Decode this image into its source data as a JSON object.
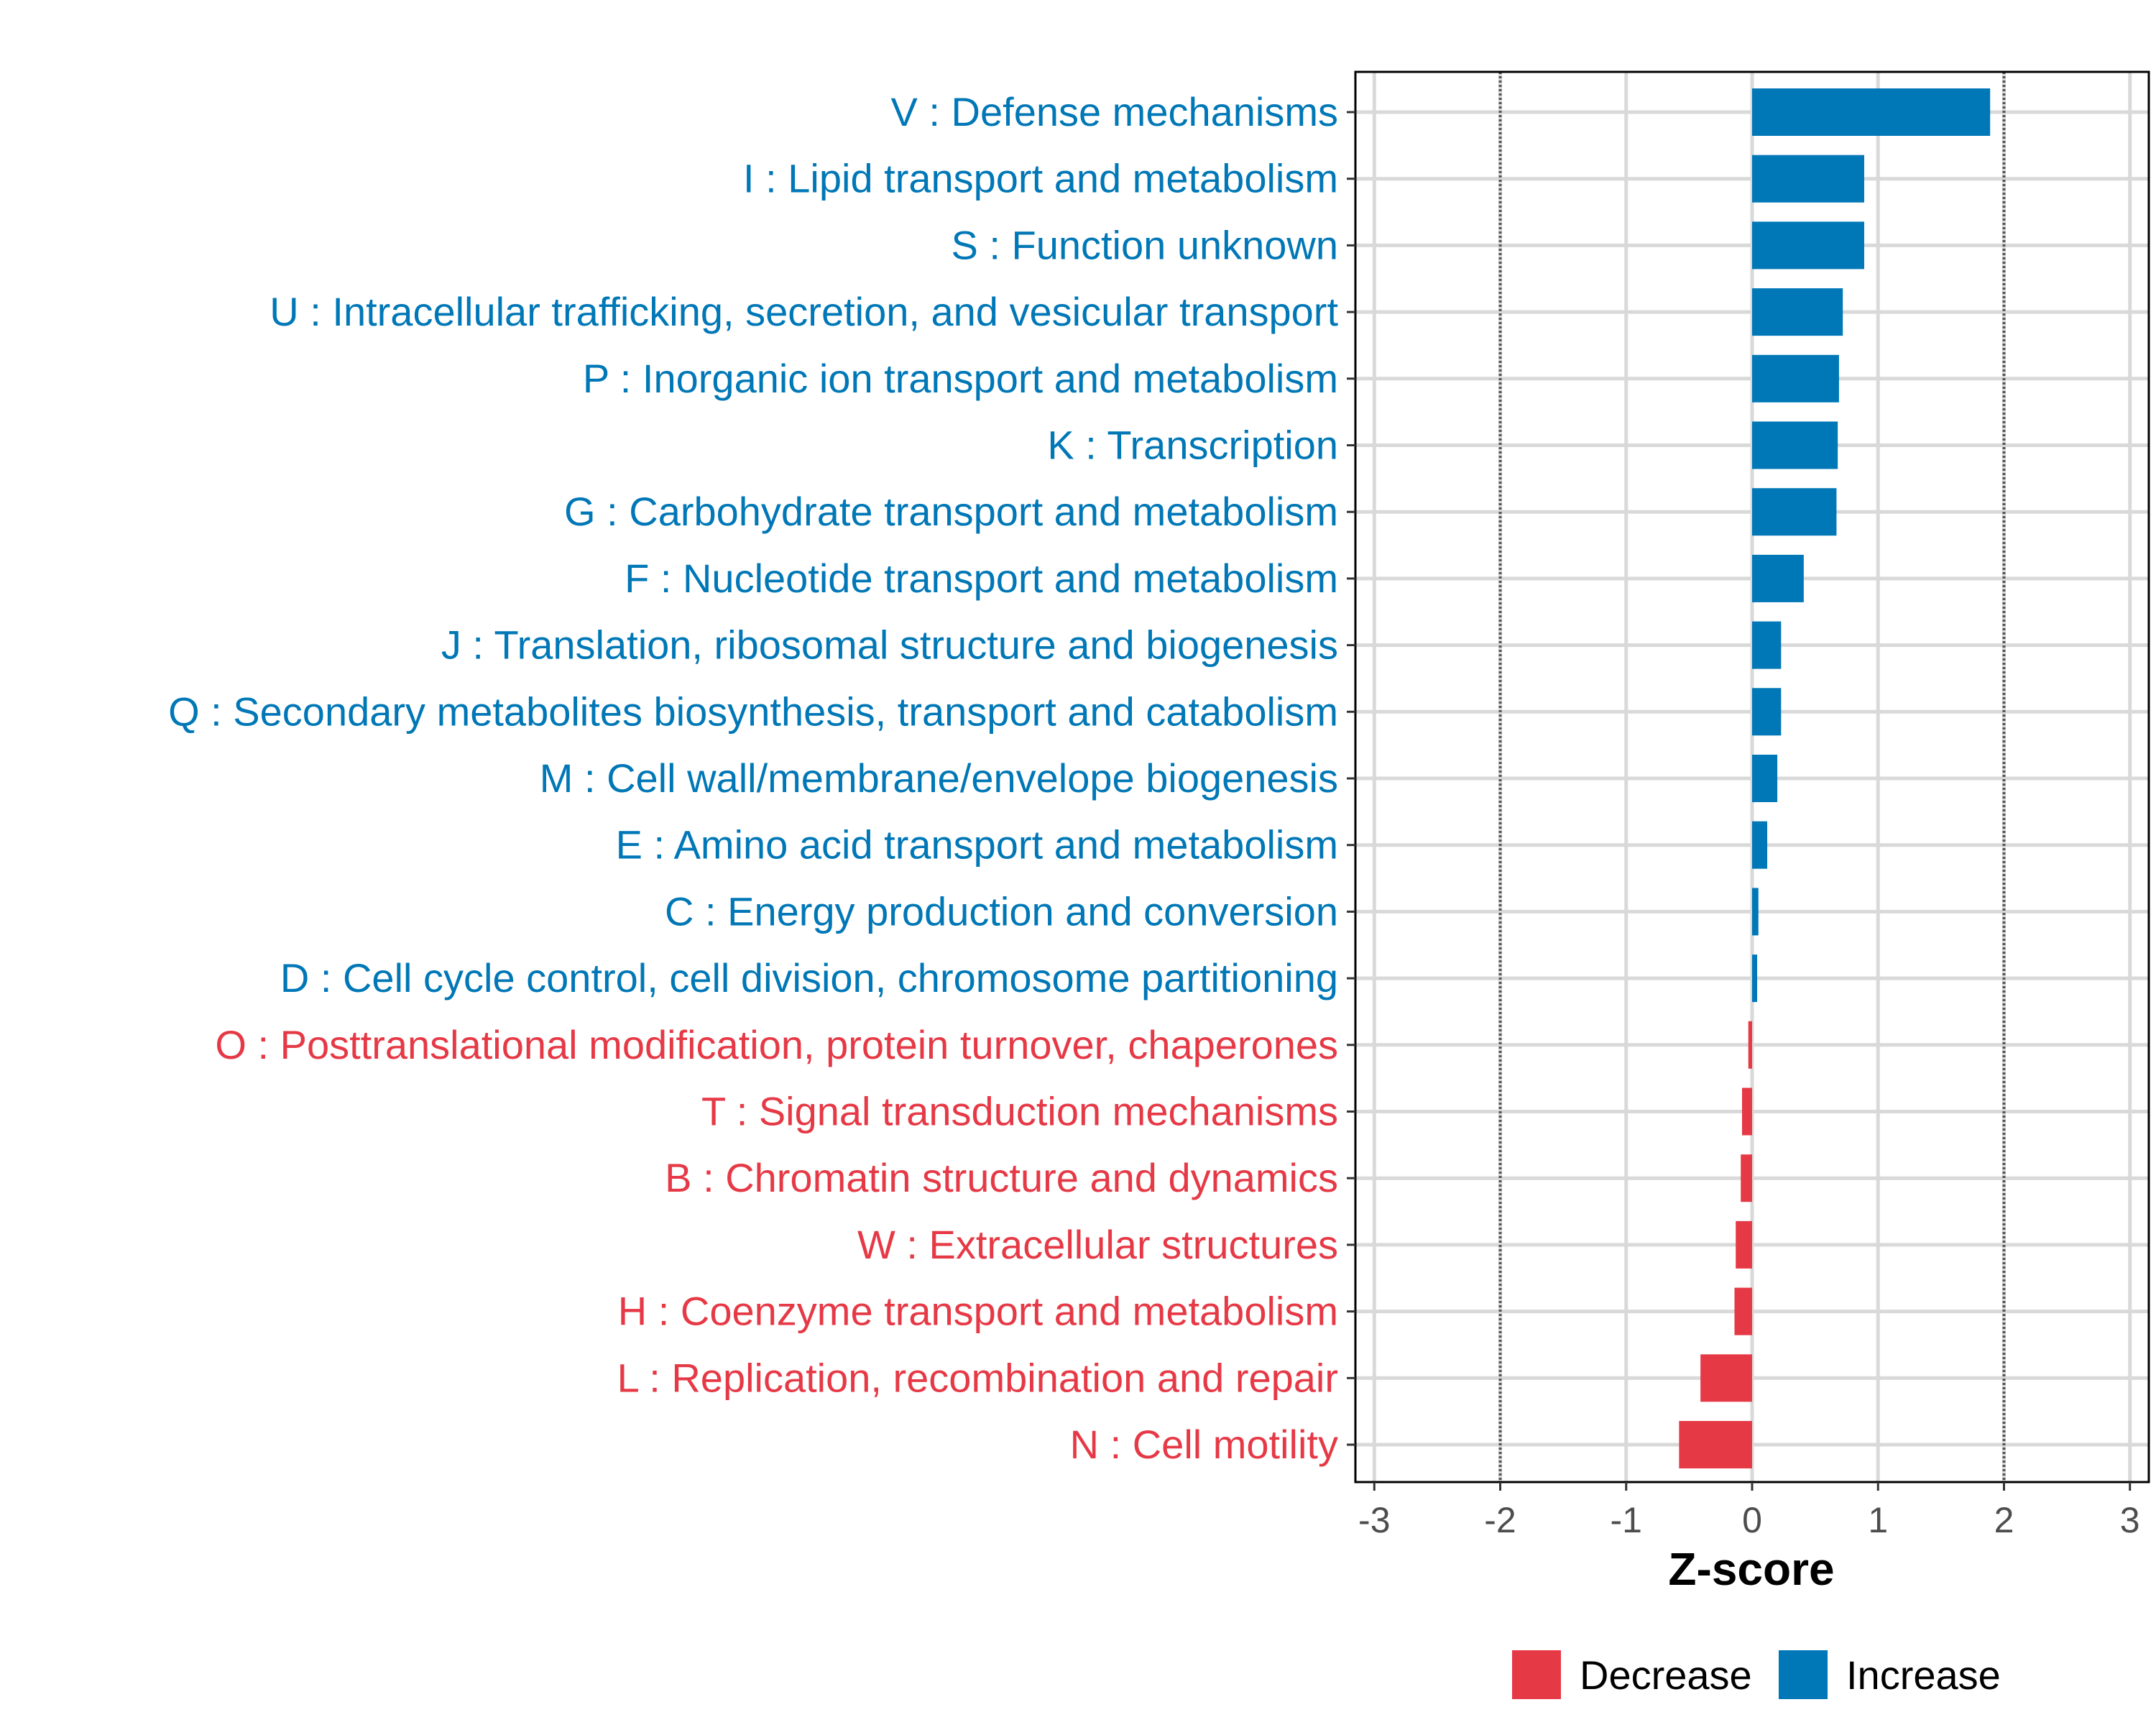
{
  "chart_data": {
    "type": "bar",
    "orientation": "horizontal",
    "title": "",
    "xlabel": "Z-score",
    "ylabel": "",
    "xlim": [
      -3.15,
      3.15
    ],
    "xticks": [
      "-3",
      "-2",
      "-1",
      "0",
      "1",
      "2",
      "3"
    ],
    "xtick_values": [
      -3,
      -2,
      -1,
      0,
      1,
      2,
      3
    ],
    "reference_lines": [
      -2,
      2
    ],
    "grid": true,
    "legend_position": "bottom",
    "legend": [
      {
        "label": "Decrease",
        "color": "#E63946"
      },
      {
        "label": "Increase",
        "color": "#0077B6"
      }
    ],
    "categories": [
      "V : Defense mechanisms",
      "I : Lipid transport and metabolism",
      "S : Function unknown",
      "U : Intracellular trafficking, secretion, and vesicular transport",
      "P : Inorganic ion transport and metabolism",
      "K : Transcription",
      "G : Carbohydrate transport and metabolism",
      "F : Nucleotide transport and metabolism",
      "J : Translation, ribosomal structure and biogenesis",
      "Q : Secondary metabolites biosynthesis, transport and catabolism",
      "M : Cell wall/membrane/envelope biogenesis",
      "E : Amino acid transport and metabolism",
      "C : Energy production and conversion",
      "D : Cell cycle control, cell division, chromosome partitioning",
      "O : Posttranslational modification, protein turnover, chaperones",
      "T : Signal transduction mechanisms",
      "B : Chromatin structure and dynamics",
      "W : Extracellular structures",
      "H : Coenzyme transport and metabolism",
      "L : Replication, recombination and repair",
      "N : Cell motility"
    ],
    "values": [
      1.89,
      0.89,
      0.89,
      0.72,
      0.69,
      0.68,
      0.67,
      0.41,
      0.23,
      0.23,
      0.2,
      0.12,
      0.05,
      0.04,
      -0.03,
      -0.08,
      -0.09,
      -0.13,
      -0.14,
      -0.41,
      -0.58
    ],
    "colors": {
      "increase": "#0077B6",
      "decrease": "#E63946",
      "grid": "#D9D9D9",
      "refline": "#555555"
    }
  }
}
